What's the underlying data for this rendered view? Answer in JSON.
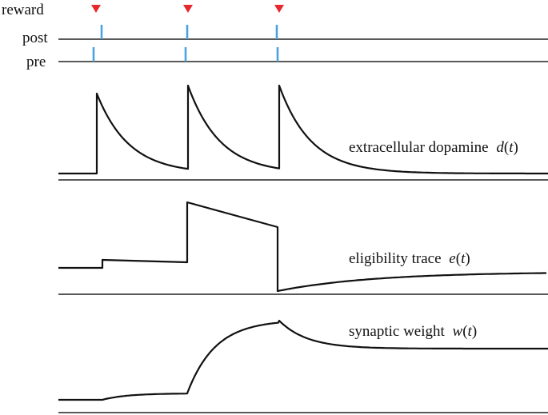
{
  "colors": {
    "spike": "#4aa3df",
    "reward_marker": "#e8272d",
    "trace": "#111111",
    "baseline": "#222222"
  },
  "rows": {
    "reward_label": "reward",
    "post_label": "post",
    "pre_label": "pre"
  },
  "traces": {
    "dopamine": {
      "label": "extracellular dopamine",
      "var": "d",
      "arg": "t",
      "open": "(",
      "close": ")"
    },
    "eligibility": {
      "label": "eligibility trace",
      "var": "e",
      "arg": "t",
      "open": "(",
      "close": ")"
    },
    "weight": {
      "label": "synaptic weight",
      "var": "w",
      "arg": "t",
      "open": "(",
      "close": ")"
    }
  },
  "icons": {
    "reward": "downward-triangle",
    "spike": "vertical-tick"
  }
}
